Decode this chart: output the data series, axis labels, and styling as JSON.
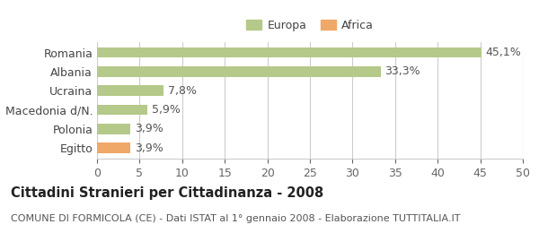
{
  "categories": [
    "Romania",
    "Albania",
    "Ucraina",
    "Macedonia d/N.",
    "Polonia",
    "Egitto"
  ],
  "values": [
    45.1,
    33.3,
    7.8,
    5.9,
    3.9,
    3.9
  ],
  "labels": [
    "45,1%",
    "33,3%",
    "7,8%",
    "5,9%",
    "3,9%",
    "3,9%"
  ],
  "colors": [
    "#b5c98a",
    "#b5c98a",
    "#b5c98a",
    "#b5c98a",
    "#b5c98a",
    "#f0a868"
  ],
  "europa_color": "#b5c98a",
  "africa_color": "#f0a868",
  "xlim": [
    0,
    50
  ],
  "xticks": [
    0,
    5,
    10,
    15,
    20,
    25,
    30,
    35,
    40,
    45,
    50
  ],
  "title": "Cittadini Stranieri per Cittadinanza - 2008",
  "subtitle": "COMUNE DI FORMICOLA (CE) - Dati ISTAT al 1° gennaio 2008 - Elaborazione TUTTITALIA.IT",
  "legend_europa": "Europa",
  "legend_africa": "Africa",
  "background_color": "#ffffff",
  "grid_color": "#cccccc",
  "bar_height": 0.55,
  "label_fontsize": 9,
  "title_fontsize": 10.5,
  "subtitle_fontsize": 8,
  "tick_fontsize": 9,
  "ylabel_fontsize": 9
}
